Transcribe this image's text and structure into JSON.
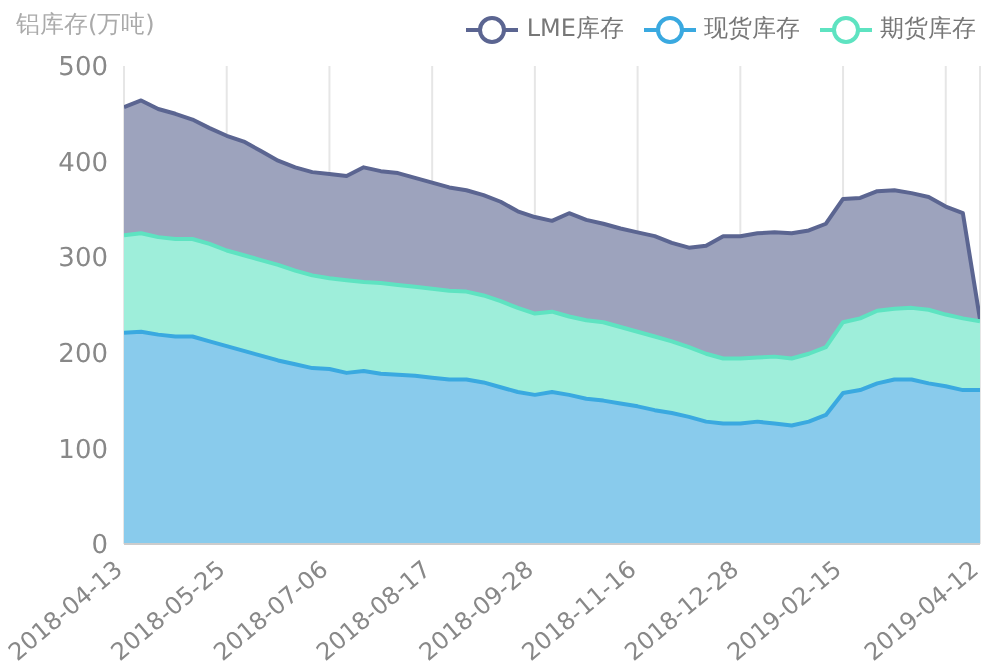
{
  "chart_data": {
    "type": "area",
    "ylabel": "铝库存(万吨)",
    "categories": [
      "2018-04-13",
      null,
      null,
      null,
      null,
      null,
      "2018-05-25",
      null,
      null,
      null,
      null,
      null,
      "2018-07-06",
      null,
      null,
      null,
      null,
      null,
      "2018-08-17",
      null,
      null,
      null,
      null,
      null,
      "2018-09-28",
      null,
      null,
      null,
      null,
      null,
      "2018-11-16",
      null,
      null,
      null,
      null,
      null,
      "2018-12-28",
      null,
      null,
      null,
      null,
      null,
      "2019-02-15",
      null,
      null,
      null,
      null,
      null,
      null,
      null,
      "2019-04-12"
    ],
    "series": [
      {
        "name": "LME库存",
        "color": "#5b6591",
        "values": [
          457,
          464,
          455,
          450,
          444,
          435,
          427,
          421,
          411,
          401,
          394,
          389,
          387,
          385,
          394,
          390,
          388,
          383,
          378,
          373,
          370,
          365,
          358,
          348,
          342,
          338,
          346,
          339,
          335,
          330,
          326,
          322,
          315,
          310,
          312,
          322,
          322,
          325,
          326,
          325,
          328,
          335,
          361,
          362,
          369,
          370,
          367,
          363,
          353,
          346,
          235
        ]
      },
      {
        "name": "现货库存",
        "color": "#3aa9e0",
        "values": [
          221,
          222,
          219,
          217,
          217,
          212,
          207,
          202,
          197,
          192,
          188,
          184,
          183,
          179,
          181,
          178,
          177,
          176,
          174,
          172,
          172,
          169,
          164,
          159,
          156,
          159,
          156,
          152,
          150,
          147,
          144,
          140,
          137,
          133,
          128,
          126,
          126,
          128,
          126,
          124,
          128,
          135,
          158,
          161,
          168,
          172,
          172,
          168,
          165,
          161,
          161
        ]
      },
      {
        "name": "期货库存",
        "color": "#5ee3c1",
        "values": [
          323,
          325,
          321,
          319,
          319,
          314,
          307,
          302,
          297,
          292,
          286,
          281,
          278,
          276,
          274,
          273,
          271,
          269,
          267,
          265,
          264,
          260,
          254,
          247,
          241,
          243,
          238,
          234,
          232,
          227,
          222,
          217,
          212,
          206,
          199,
          194,
          194,
          195,
          196,
          194,
          199,
          206,
          232,
          236,
          244,
          246,
          247,
          245,
          240,
          236,
          233
        ]
      }
    ],
    "ylim": [
      0,
      500
    ],
    "yticks": [
      0,
      100,
      200,
      300,
      400,
      500
    ],
    "grid": "x",
    "legend": "top right"
  }
}
